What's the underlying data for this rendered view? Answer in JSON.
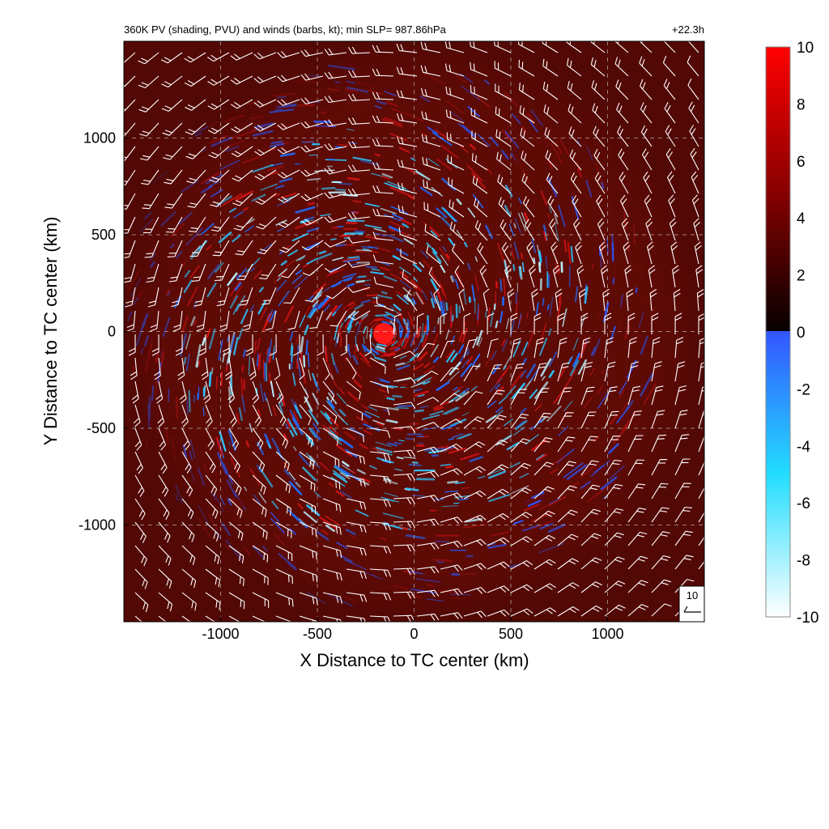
{
  "chart_data": {
    "type": "heatmap",
    "title": "360K PV (shading, PVU) and winds (barbs, kt); min SLP= 987.86hPa",
    "time_label": "+22.3h",
    "xlabel": "X Distance to TC center (km)",
    "ylabel": "Y Distance to TC center (km)",
    "xlim": [
      -1500,
      1500
    ],
    "ylim": [
      -1500,
      1500
    ],
    "x_ticks": [
      -1000,
      -500,
      0,
      500,
      1000
    ],
    "y_ticks": [
      1000,
      500,
      0,
      -500,
      -1000
    ],
    "x_tick_labels": [
      "-1000",
      "-500",
      "0",
      "500",
      "1000"
    ],
    "y_tick_labels": [
      "1000",
      "500",
      "0",
      "-500",
      "-1000"
    ],
    "grid": true,
    "colorbar": {
      "min": -10,
      "max": 10,
      "ticks": [
        10,
        8,
        6,
        4,
        2,
        0,
        -2,
        -4,
        -6,
        -8,
        -10
      ],
      "tick_labels": [
        "10",
        "8",
        "6",
        "4",
        "2",
        "0",
        "-2",
        "-4",
        "-6",
        "-8",
        "-10"
      ],
      "positive_colors": [
        "#050000",
        "#8a0000",
        "#ff0000"
      ],
      "negative_colors": [
        "#3355ff",
        "#22ddff",
        "#ffffff"
      ]
    },
    "barb_key_label": "10",
    "colors": {
      "background_field": "#5e0a05",
      "barbs": "#ffffff",
      "gridlines": "#bbbbbb"
    }
  }
}
